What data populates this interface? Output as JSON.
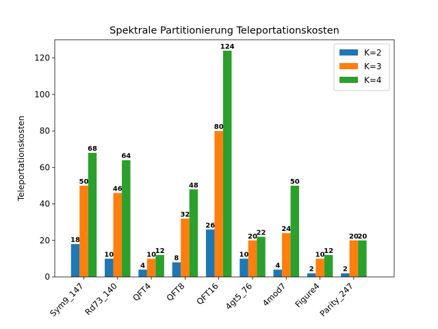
{
  "chart_data": {
    "type": "bar",
    "title": "Spektrale Partitionierung Teleportationskosten",
    "xlabel": "",
    "ylabel": "Teleportationskosten",
    "categories": [
      "Sym9_147",
      "Rd73_140",
      "QFT4",
      "QFT8",
      "QFT16",
      "4gt5_76",
      "4mod7",
      "Figure4",
      "Parity_247"
    ],
    "series": [
      {
        "name": "K=2",
        "color": "#1f77b4",
        "values": [
          18,
          10,
          4,
          8,
          26,
          10,
          4,
          2,
          2
        ]
      },
      {
        "name": "K=3",
        "color": "#ff7f0e",
        "values": [
          50,
          46,
          10,
          32,
          80,
          20,
          24,
          10,
          20
        ]
      },
      {
        "name": "K=4",
        "color": "#2ca02c",
        "values": [
          68,
          64,
          12,
          48,
          124,
          22,
          50,
          12,
          20
        ]
      }
    ],
    "ylim": [
      0,
      130
    ],
    "yticks": [
      0,
      20,
      40,
      60,
      80,
      100,
      120
    ],
    "grid": false,
    "legend_position": "top-right"
  }
}
